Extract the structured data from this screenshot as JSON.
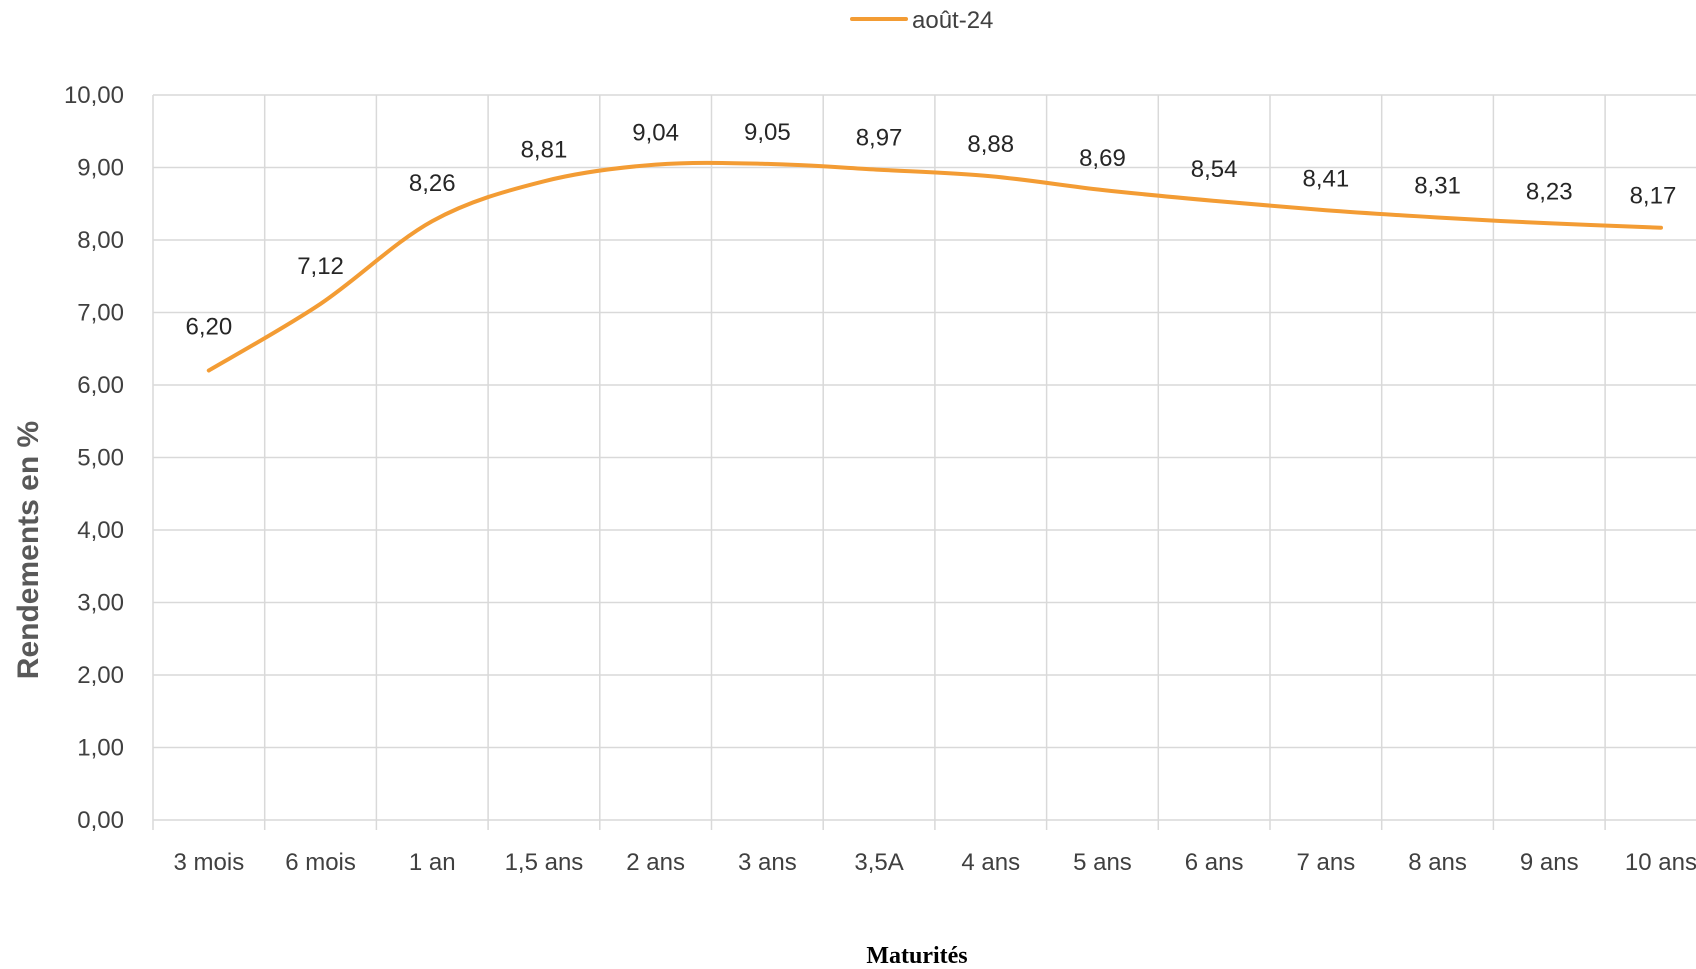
{
  "chart_data": {
    "type": "line",
    "categories": [
      "3 mois",
      "6 mois",
      "1 an",
      "1,5 ans",
      "2 ans",
      "3 ans",
      "3,5A",
      "4 ans",
      "5 ans",
      "6 ans",
      "7 ans",
      "8 ans",
      "9 ans",
      "10 ans"
    ],
    "series": [
      {
        "name": "août-24",
        "values": [
          6.2,
          7.12,
          8.26,
          8.81,
          9.04,
          9.05,
          8.97,
          8.88,
          8.69,
          8.54,
          8.41,
          8.31,
          8.23,
          8.17
        ],
        "labels": [
          "6,20",
          "7,12",
          "8,26",
          "8,81",
          "9,04",
          "9,05",
          "8,97",
          "8,88",
          "8,69",
          "8,54",
          "8,41",
          "8,31",
          "8,23",
          "8,17"
        ],
        "color": "#f39c34"
      }
    ],
    "xlabel": "Maturités",
    "ylabel": "Rendements en %",
    "ylim": [
      0,
      10
    ],
    "yticks": [
      "0,00",
      "1,00",
      "2,00",
      "3,00",
      "4,00",
      "5,00",
      "6,00",
      "7,00",
      "8,00",
      "9,00",
      "10,00"
    ],
    "grid": true,
    "legend": "top-center",
    "smooth": true
  }
}
